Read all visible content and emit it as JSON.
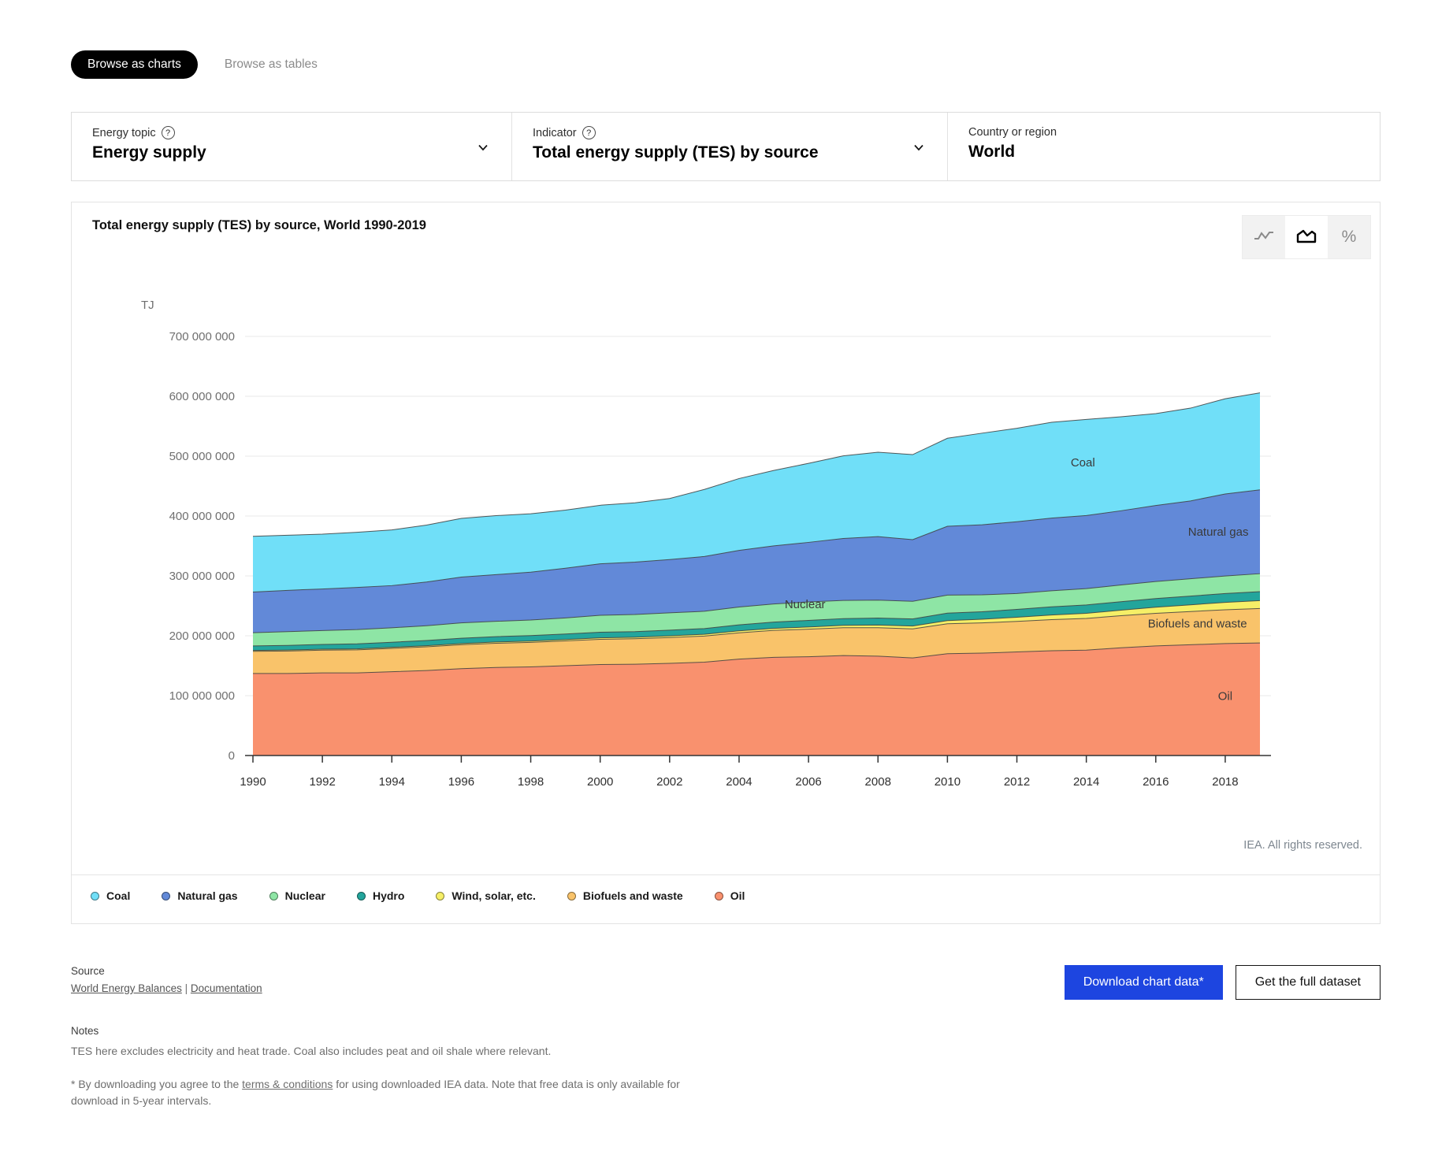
{
  "tabs": [
    {
      "label": "Browse as charts",
      "active": true
    },
    {
      "label": "Browse as tables",
      "active": false
    }
  ],
  "filters": [
    {
      "label": "Energy topic",
      "value": "Energy supply",
      "has_help": true,
      "has_chevron": true
    },
    {
      "label": "Indicator",
      "value": "Total energy supply (TES) by source",
      "has_help": true,
      "has_chevron": true
    },
    {
      "label": "Country or region",
      "value": "World",
      "has_help": false,
      "has_chevron": false
    }
  ],
  "chart": {
    "title": "Total energy supply (TES) by source, World 1990-2019",
    "copyright": "IEA. All rights reserved.",
    "toolbar": {
      "percent_label": "%",
      "active": "area"
    }
  },
  "chart_data": {
    "type": "area",
    "stacked": true,
    "title": "Total energy supply (TES) by source, World 1990-2019",
    "unit": "TJ",
    "ylabel": "TJ",
    "xlabel": "",
    "grid": true,
    "legend_position": "bottom",
    "ylim": [
      0,
      700000000
    ],
    "ytick_values": [
      0,
      100000000,
      200000000,
      300000000,
      400000000,
      500000000,
      600000000,
      700000000
    ],
    "ytick_labels": [
      "0",
      "100 000 000",
      "200 000 000",
      "300 000 000",
      "400 000 000",
      "500 000 000",
      "600 000 000",
      "700 000 000"
    ],
    "x_years": [
      1990,
      1991,
      1992,
      1993,
      1994,
      1995,
      1996,
      1997,
      1998,
      1999,
      2000,
      2001,
      2002,
      2003,
      2004,
      2005,
      2006,
      2007,
      2008,
      2009,
      2010,
      2011,
      2012,
      2013,
      2014,
      2015,
      2016,
      2017,
      2018,
      2019
    ],
    "xticks": [
      1990,
      1992,
      1994,
      1996,
      1998,
      2000,
      2002,
      2004,
      2006,
      2008,
      2010,
      2012,
      2014,
      2016,
      2018
    ],
    "series": [
      {
        "name": "Oil",
        "color": "#f9916e",
        "values": [
          137000000,
          137000000,
          138000000,
          138000000,
          140000000,
          142000000,
          145000000,
          147000000,
          148000000,
          150000000,
          152000000,
          152500000,
          154000000,
          156000000,
          161000000,
          164000000,
          165000000,
          167000000,
          166000000,
          163000000,
          170000000,
          171000000,
          173000000,
          175000000,
          176000000,
          180000000,
          183000000,
          185000000,
          187000000,
          188000000
        ]
      },
      {
        "name": "Biofuels and waste",
        "color": "#f9c36a",
        "values": [
          37000000,
          37500000,
          38000000,
          38500000,
          39000000,
          39500000,
          40000000,
          40500000,
          41000000,
          41500000,
          42000000,
          42500000,
          43000000,
          43500000,
          44000000,
          45000000,
          46000000,
          46500000,
          47500000,
          48500000,
          50000000,
          50500000,
          51000000,
          52000000,
          53000000,
          53500000,
          54500000,
          55500000,
          56500000,
          57500000
        ]
      },
      {
        "name": "Wind, solar, etc.",
        "color": "#f6ef67",
        "values": [
          1500000,
          1600000,
          1600000,
          1700000,
          1800000,
          1900000,
          2000000,
          2100000,
          2200000,
          2300000,
          2500000,
          2600000,
          2800000,
          3000000,
          3200000,
          3400000,
          3700000,
          4000000,
          4400000,
          4800000,
          5400000,
          6100000,
          6900000,
          7700000,
          8500000,
          9300000,
          10200000,
          11200000,
          12200000,
          13200000
        ]
      },
      {
        "name": "Hydro",
        "color": "#23a59c",
        "values": [
          7600000,
          7800000,
          7900000,
          8300000,
          8400000,
          8700000,
          8900000,
          9000000,
          9100000,
          9200000,
          9400000,
          9300000,
          9500000,
          9500000,
          10100000,
          10500000,
          11000000,
          11200000,
          11700000,
          11800000,
          12400000,
          12600000,
          13100000,
          13600000,
          14000000,
          14100000,
          14500000,
          14600000,
          14800000,
          15000000
        ]
      },
      {
        "name": "Nuclear",
        "color": "#8ee5a5",
        "values": [
          22000000,
          23000000,
          23200000,
          23800000,
          24100000,
          24700000,
          25600000,
          25500000,
          26000000,
          26800000,
          28300000,
          28700000,
          29000000,
          28900000,
          29800000,
          30200000,
          30800000,
          30300000,
          30000000,
          29500000,
          30100000,
          28200000,
          26500000,
          26800000,
          27300000,
          27900000,
          28400000,
          28900000,
          29400000,
          30000000
        ]
      },
      {
        "name": "Natural gas",
        "color": "#6289d8",
        "values": [
          68000000,
          69000000,
          69500000,
          70500000,
          70500000,
          73000000,
          76500000,
          78000000,
          80000000,
          83000000,
          86000000,
          87500000,
          89000000,
          91500000,
          94500000,
          97000000,
          99500000,
          103500000,
          106000000,
          103000000,
          115000000,
          117000000,
          120000000,
          121500000,
          122000000,
          124000000,
          127000000,
          130000000,
          137000000,
          140000000
        ]
      },
      {
        "name": "Coal",
        "color": "#70dff8",
        "values": [
          93000000,
          92000000,
          91500000,
          92000000,
          93000000,
          95000000,
          98000000,
          98500000,
          97500000,
          97000000,
          97800000,
          99000000,
          102000000,
          112000000,
          120000000,
          126000000,
          132000000,
          138000000,
          141000000,
          142000000,
          147000000,
          153000000,
          156000000,
          160000000,
          160500000,
          157000000,
          153500000,
          155000000,
          159000000,
          162000000
        ]
      }
    ],
    "area_labels": [
      {
        "text": "Coal",
        "year": 2013.9,
        "value": 483000000
      },
      {
        "text": "Natural gas",
        "year": 2017.8,
        "value": 367000000
      },
      {
        "text": "Nuclear",
        "year": 2005.9,
        "value": 246000000
      },
      {
        "text": "Biofuels and waste",
        "year": 2017.2,
        "value": 214000000
      },
      {
        "text": "Oil",
        "year": 2018.0,
        "value": 93000000
      }
    ]
  },
  "legend": [
    {
      "label": "Coal",
      "color": "#70dff8"
    },
    {
      "label": "Natural gas",
      "color": "#6289d8"
    },
    {
      "label": "Nuclear",
      "color": "#8ee5a5"
    },
    {
      "label": "Hydro",
      "color": "#23a59c"
    },
    {
      "label": "Wind, solar, etc.",
      "color": "#f6ef67"
    },
    {
      "label": "Biofuels and waste",
      "color": "#f9c36a"
    },
    {
      "label": "Oil",
      "color": "#f9916e"
    }
  ],
  "source": {
    "heading": "Source",
    "links": [
      {
        "label": "World Energy Balances"
      },
      {
        "label": "Documentation"
      }
    ],
    "separator": "|"
  },
  "actions": {
    "download_label": "Download chart data*",
    "dataset_label": "Get the full dataset"
  },
  "notes": {
    "heading": "Notes",
    "note1": "TES here excludes electricity and heat trade. Coal also includes peat and oil shale where relevant.",
    "note2_prefix": "* By downloading you agree to the ",
    "note2_link": "terms & conditions",
    "note2_suffix": " for using downloaded IEA data. Note that free data is only available for download in 5-year intervals."
  }
}
